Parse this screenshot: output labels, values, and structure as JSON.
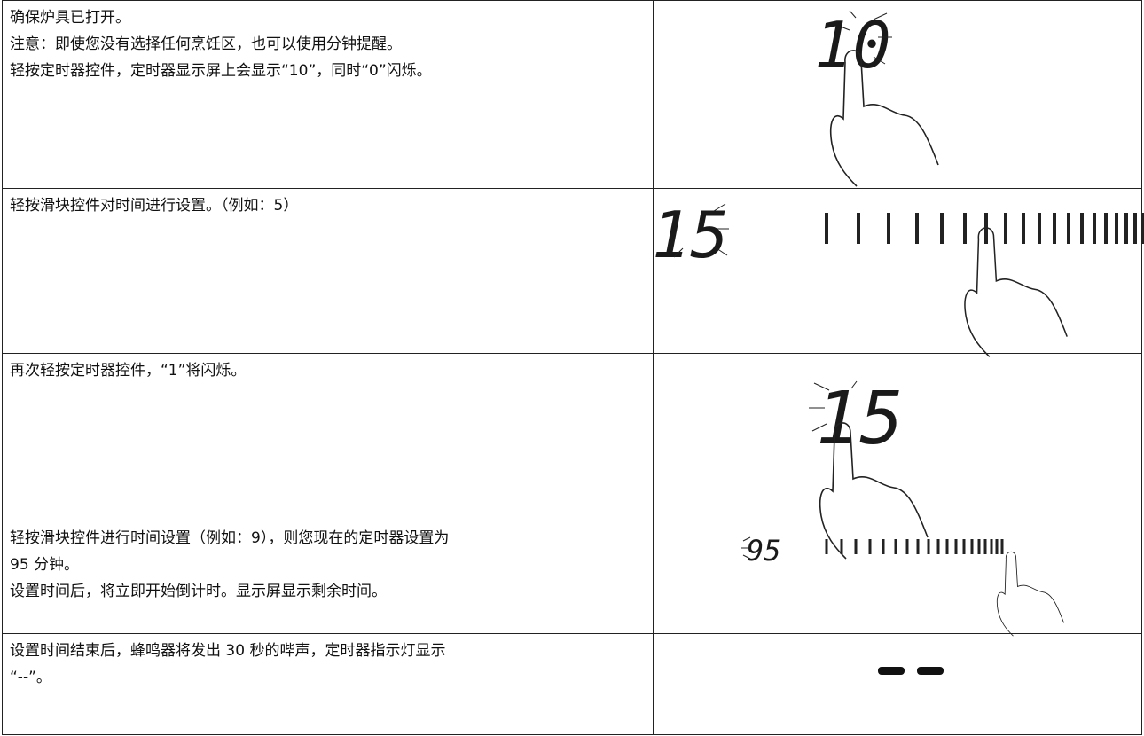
{
  "rows": [
    {
      "text": [
        "确保炉具已打开。",
        "注意：即使您没有选择任何烹饪区，也可以使用分钟提醒。",
        "轻按定时器控件，定时器显示屏上会显示“10”，同时“0”闪烁。"
      ],
      "display": "10"
    },
    {
      "text": [
        "轻按滑块控件对时间进行设置。（例如：5）"
      ],
      "display": "15"
    },
    {
      "text": [
        "再次轻按定时器控件，“1”将闪烁。"
      ],
      "display": "15"
    },
    {
      "text": [
        "轻按滑块控件进行时间设置（例如：9），则您现在的定时器设置为",
        "95 分钟。",
        "设置时间后，将立即开始倒计时。显示屏显示剩余时间。"
      ],
      "display": "95"
    },
    {
      "text": [
        "设置时间结束后，蜂鸣器将发出 30 秒的哔声，定时器指示灯显示",
        "“--”。"
      ]
    }
  ]
}
